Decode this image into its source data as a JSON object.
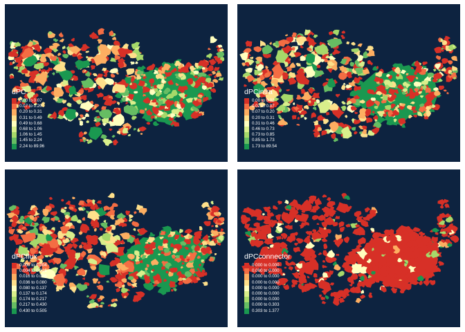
{
  "palette": [
    "#d73027",
    "#f46d43",
    "#fdae61",
    "#fee08b",
    "#ffffbf",
    "#d9ef8b",
    "#a6d96a",
    "#66bd63",
    "#1a9850"
  ],
  "background_color": "#0d2340",
  "panels": [
    {
      "id": "dPC",
      "title": "dPC",
      "large_region_class": 8,
      "legend": [
        "0.00 to 0.07",
        "0.07 to 0.20",
        "0.20 to 0.31",
        "0.31 to 0.49",
        "0.49 to 0.68",
        "0.68 to 1.06",
        "1.06 to 1.45",
        "1.45 to 2.24",
        "2.24 to 89.96"
      ]
    },
    {
      "id": "dPCintra",
      "title": "dPCintra",
      "large_region_class": 8,
      "legend": [
        "0.00 to 0.02",
        "0.02 to 0.07",
        "0.07 to 0.20",
        "0.20 to 0.31",
        "0.31 to 0.46",
        "0.46 to 0.73",
        "0.73 to 0.85",
        "0.85 to 1.73",
        "1.73 to 89.54"
      ]
    },
    {
      "id": "dPCflux",
      "title": "dPCflux",
      "large_region_class": 8,
      "legend": [
        "0.000 to 0.004",
        "0.004 to 0.016",
        "0.016 to 0.036",
        "0.036 to 0.080",
        "0.080 to 0.137",
        "0.137 to 0.174",
        "0.174 to 0.217",
        "0.217 to 0.430",
        "0.430 to 0.505"
      ]
    },
    {
      "id": "dPCconnector",
      "title": "dPCconnector",
      "large_region_class": 0,
      "legend": [
        "0.000 to 0.000",
        "0.000 to 0.000",
        "0.000 to 0.000",
        "0.000 to 0.000",
        "0.000 to 0.000",
        "0.000 to 0.000",
        "0.000 to 0.000",
        "0.000 to 0.303",
        "0.303 to 1.377"
      ]
    }
  ]
}
